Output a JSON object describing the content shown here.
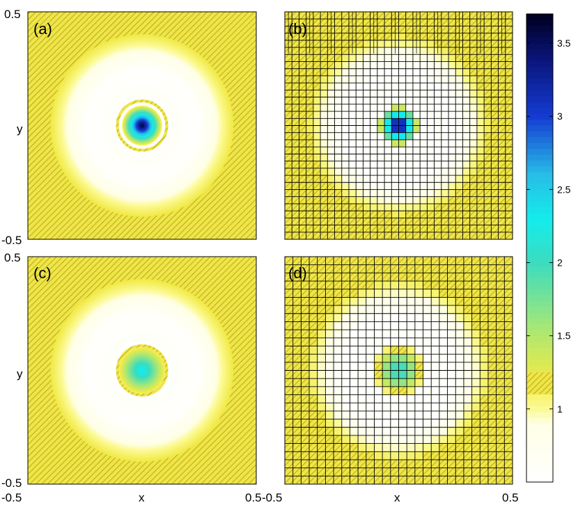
{
  "chart_data": {
    "type": "heatmap",
    "panels": [
      {
        "label": "(a)",
        "kind": "smooth",
        "peak_value": 3.7
      },
      {
        "label": "(b)",
        "kind": "grid",
        "peak_value": 3.7
      },
      {
        "label": "(c)",
        "kind": "smooth",
        "peak_value": 2.4
      },
      {
        "label": "(d)",
        "kind": "grid",
        "peak_value": 2.2
      }
    ],
    "x_axis": {
      "label": "x",
      "range": [
        -0.5,
        0.5
      ],
      "tick_labels": [
        "-0.5",
        "0.5"
      ]
    },
    "y_axis": {
      "label": "y",
      "range": [
        -0.5,
        0.5
      ],
      "tick_labels": [
        "0.5",
        "-0.5"
      ]
    },
    "colorbar": {
      "range": [
        0.5,
        3.7
      ],
      "ticks": [
        "1",
        "1.5",
        "2",
        "2.5",
        "3",
        "3.5"
      ],
      "hatched_band": [
        1.1,
        1.25
      ]
    },
    "colors": {
      "background_level": "#f2ea4a",
      "ring_level": "#ffffc8",
      "plateau_level": "#ffffff",
      "peak_high": "#000022",
      "peak_mid": "#1fe6dc",
      "grid_line": "#000000"
    }
  }
}
